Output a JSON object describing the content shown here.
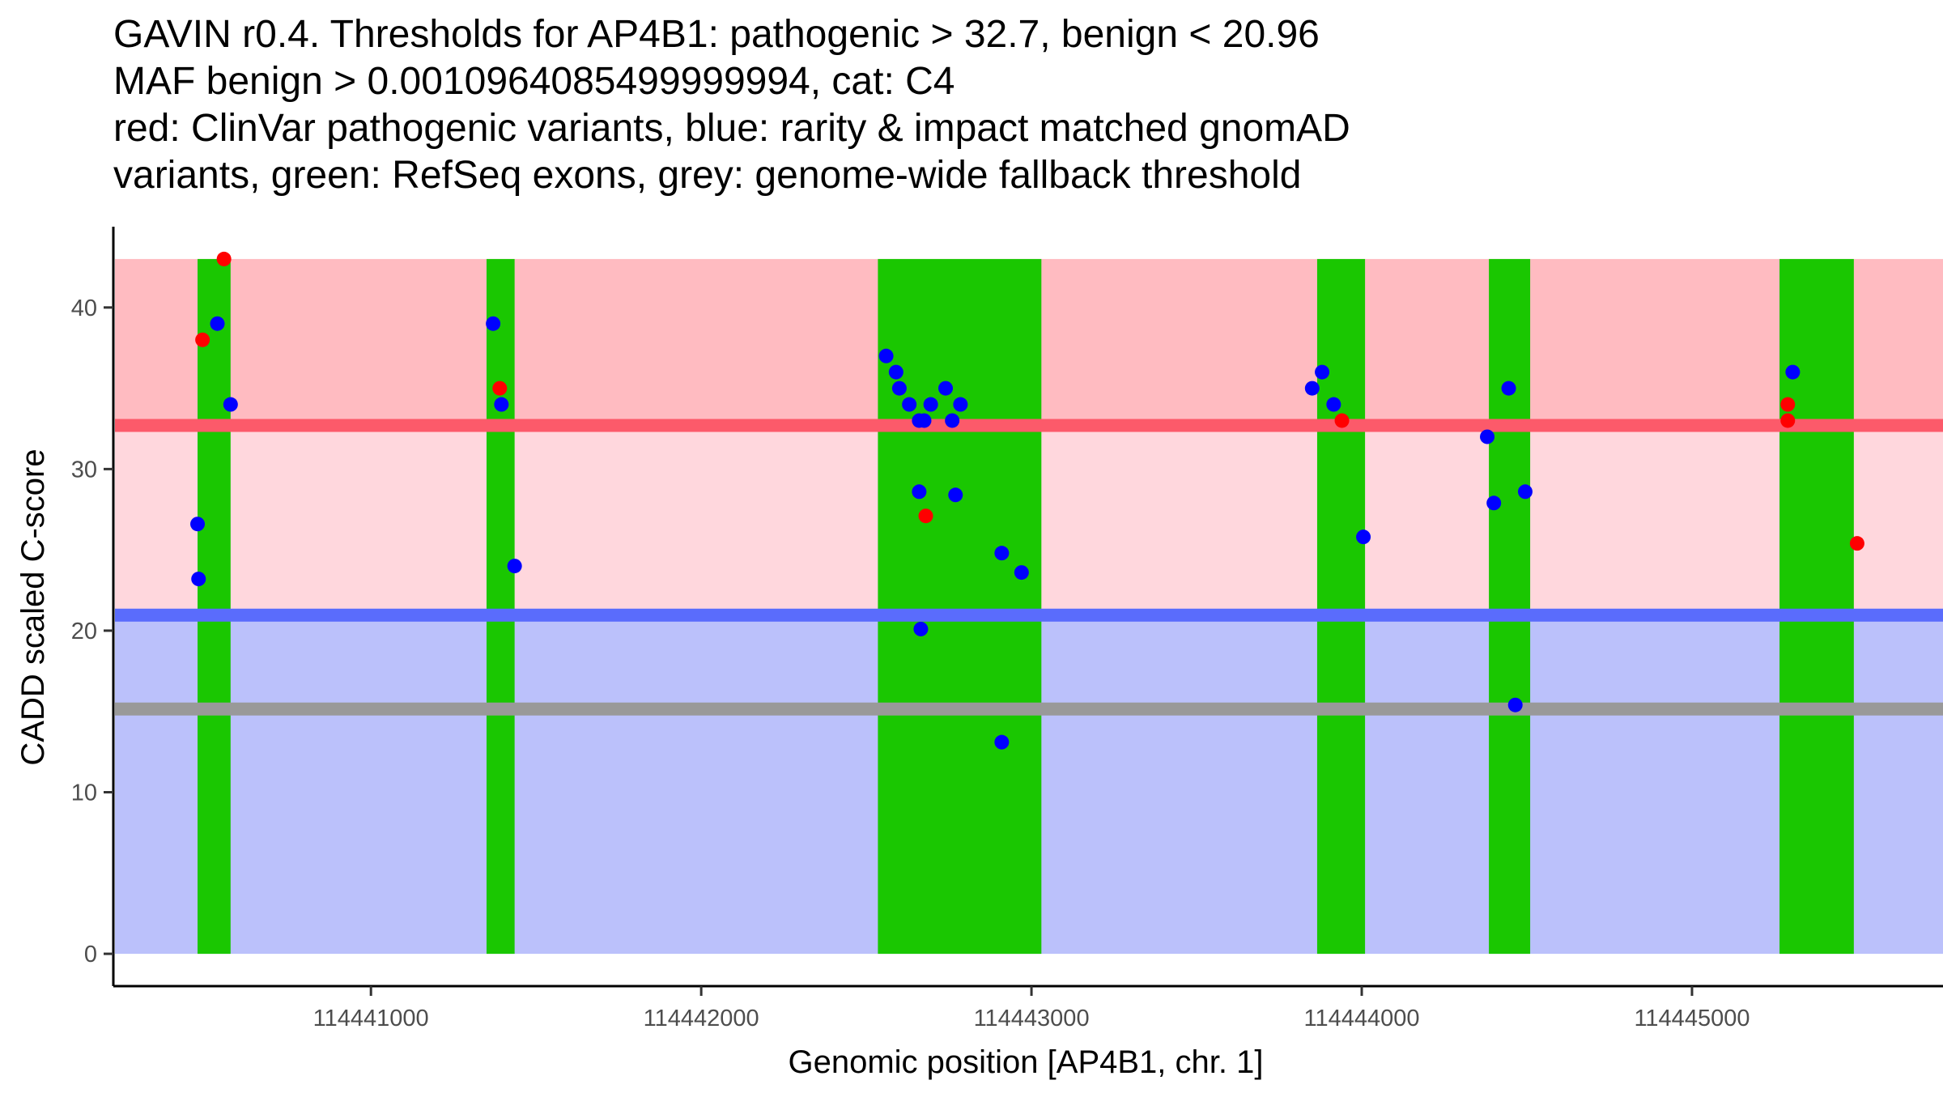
{
  "title_lines": [
    "GAVIN r0.4. Thresholds for AP4B1: pathogenic > 32.7, benign < 20.96",
    "MAF benign > 0.0010964085499999994, cat: C4",
    "red: ClinVar pathogenic variants, blue: rarity & impact matched gnomAD",
    "variants, green: RefSeq exons, grey: genome-wide fallback threshold"
  ],
  "chart_data": {
    "type": "scatter",
    "title": "GAVIN r0.4. Thresholds for AP4B1: pathogenic > 32.7, benign < 20.96",
    "xlabel": "Genomic position [AP4B1, chr. 1]",
    "ylabel": "CADD scaled C-score",
    "xlim": [
      114440220,
      114445760
    ],
    "ylim": [
      -2,
      45
    ],
    "x_ticks": [
      114441000,
      114442000,
      114443000,
      114444000,
      114445000
    ],
    "x_tick_labels": [
      "114441000",
      "114442000",
      "114443000",
      "114444000",
      "114445000"
    ],
    "y_ticks": [
      0,
      10,
      20,
      30,
      40
    ],
    "y_tick_labels": [
      "0",
      "10",
      "20",
      "30",
      "40"
    ],
    "grid": false,
    "colors": {
      "pathogenic_zone": "#ffbbc1",
      "vus_zone": "#ffd7dd",
      "benign_zone": "#bbc1fb",
      "pathogenic_line": "#fc5a6a",
      "benign_line": "#5a6cfc",
      "fallback_line": "#999999",
      "exon": "#1ac701",
      "pathogenic_point": "#ff0000",
      "gnomad_point": "#0000ff"
    },
    "bands": [
      {
        "name": "pathogenic",
        "y": [
          32.7,
          43
        ]
      },
      {
        "name": "uncertain",
        "y": [
          20.96,
          32.7
        ]
      },
      {
        "name": "benign",
        "y": [
          0,
          20.96
        ]
      }
    ],
    "thresholds": [
      {
        "name": "pathogenic",
        "y": 32.7
      },
      {
        "name": "benign",
        "y": 20.96
      },
      {
        "name": "fallback",
        "y": 15.15
      }
    ],
    "exons": [
      [
        114440475,
        114440575
      ],
      [
        114441350,
        114441435
      ],
      [
        114442535,
        114443030
      ],
      [
        114443865,
        114444010
      ],
      [
        114444385,
        114444510
      ],
      [
        114445265,
        114445490
      ]
    ],
    "series": [
      {
        "name": "ClinVar pathogenic variants",
        "color": "#ff0000",
        "points": [
          [
            114440490,
            38
          ],
          [
            114440555,
            43
          ],
          [
            114441390,
            35
          ],
          [
            114442680,
            27.1
          ],
          [
            114443940,
            33
          ],
          [
            114445290,
            34
          ],
          [
            114445290,
            33
          ],
          [
            114445500,
            25.4
          ]
        ]
      },
      {
        "name": "rarity & impact matched gnomAD variants",
        "color": "#0000ff",
        "points": [
          [
            114440475,
            26.6
          ],
          [
            114440478,
            23.2
          ],
          [
            114440535,
            39
          ],
          [
            114440575,
            34
          ],
          [
            114441370,
            39
          ],
          [
            114441395,
            34
          ],
          [
            114441435,
            24
          ],
          [
            114442560,
            37
          ],
          [
            114442590,
            36
          ],
          [
            114442600,
            35
          ],
          [
            114442630,
            34
          ],
          [
            114442660,
            28.6
          ],
          [
            114442660,
            33
          ],
          [
            114442665,
            20.1
          ],
          [
            114442675,
            33
          ],
          [
            114442695,
            34
          ],
          [
            114442740,
            35
          ],
          [
            114442760,
            33
          ],
          [
            114442770,
            28.4
          ],
          [
            114442785,
            34
          ],
          [
            114442910,
            24.8
          ],
          [
            114442910,
            13.1
          ],
          [
            114442970,
            23.6
          ],
          [
            114443850,
            35
          ],
          [
            114443880,
            36
          ],
          [
            114443915,
            34
          ],
          [
            114444005,
            25.8
          ],
          [
            114444380,
            32
          ],
          [
            114444400,
            27.9
          ],
          [
            114444445,
            35
          ],
          [
            114444465,
            15.4
          ],
          [
            114444495,
            28.6
          ],
          [
            114445305,
            36
          ]
        ]
      }
    ]
  }
}
